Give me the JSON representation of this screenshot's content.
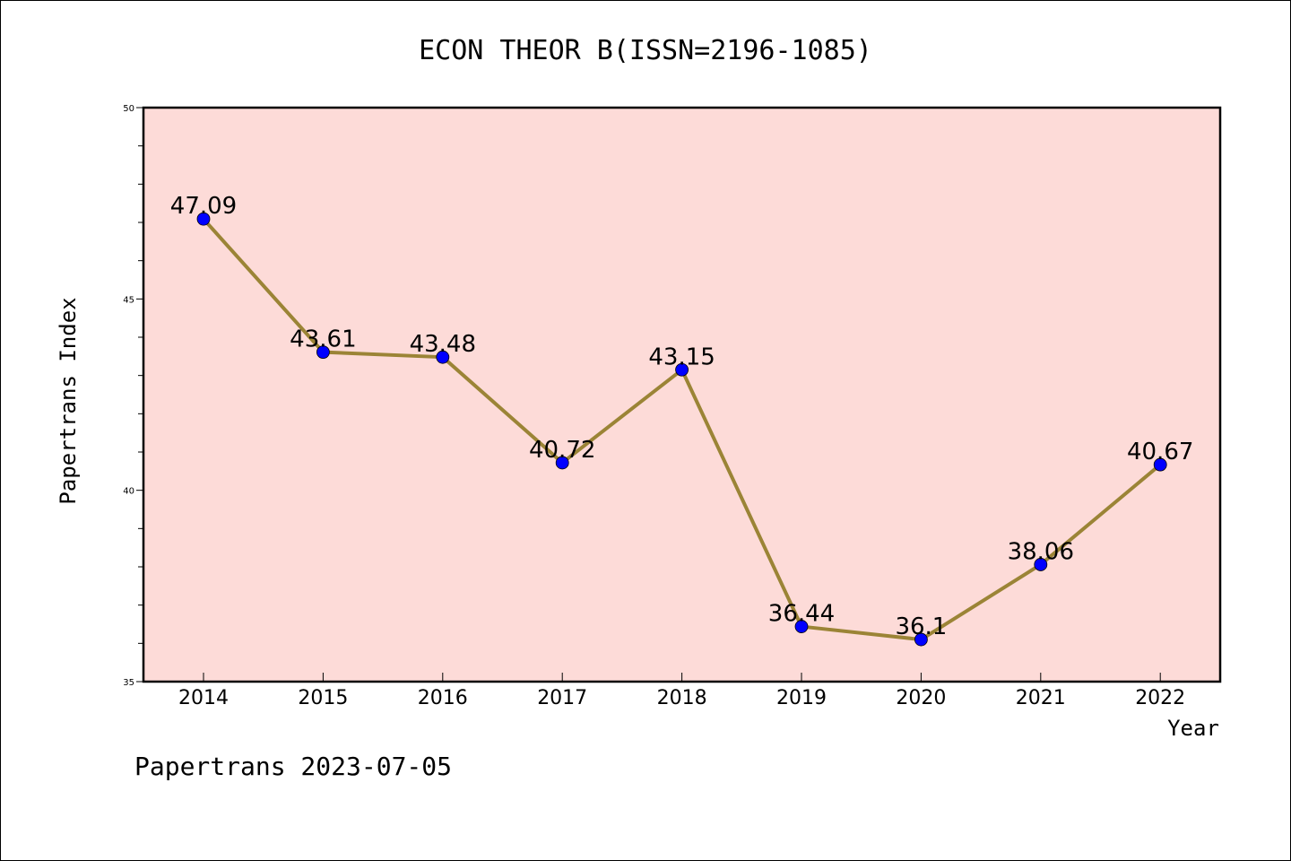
{
  "chart_data": {
    "type": "line",
    "title": "ECON THEOR B(ISSN=2196-1085)",
    "xlabel": "Year",
    "ylabel": "Papertrans Index",
    "categories": [
      "2014",
      "2015",
      "2016",
      "2017",
      "2018",
      "2019",
      "2020",
      "2021",
      "2022"
    ],
    "series": [
      {
        "values": [
          47.09,
          43.61,
          43.48,
          40.72,
          43.15,
          36.44,
          36.1,
          38.06,
          40.67
        ],
        "data_labels": [
          "47.09",
          "43.61",
          "43.48",
          "40.72",
          "43.15",
          "36.44",
          "36.1",
          "38.06",
          "40.67"
        ],
        "line_color": "#9b8436",
        "marker_color": "#0000ff"
      }
    ],
    "ylim": [
      35,
      50
    ],
    "yticks": [
      35,
      40,
      45,
      50
    ],
    "ytick_labels": [
      "35",
      "40",
      "45",
      "50"
    ],
    "grid": false,
    "legend": "none",
    "plot_background": "#fddbd8"
  },
  "footer": "Papertrans 2023-07-05"
}
